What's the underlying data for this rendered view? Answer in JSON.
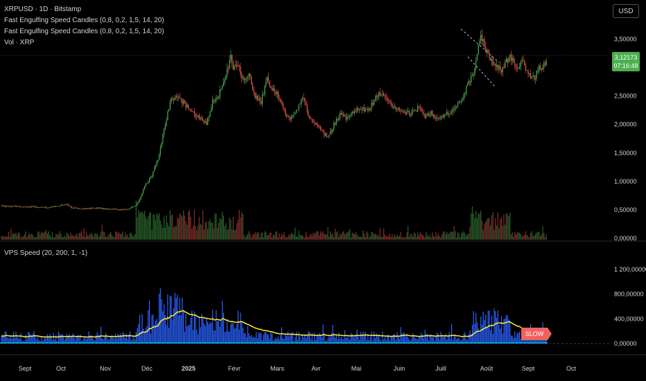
{
  "header": {
    "symbol_line": "XRPUSD · 1D · Bitstamp",
    "indicator_1": "Fast Engulfing Speed Candles (0,8, 0,2, 1,5, 14, 20)",
    "indicator_2": "Fast Engulfing Speed Candles (0,8, 0,2, 1,5, 14, 20)",
    "volume_label": "Vol · XRP",
    "sub_pane_label": "VPS Speed (20, 200, 1, -1)"
  },
  "currency_button": "USD",
  "last_price": {
    "value": "3,12173",
    "countdown": "07:16:48"
  },
  "speed_badge": "SLOW",
  "colors": {
    "up": "#4caf50",
    "down": "#ef5350",
    "vps_bar": "#2962ff",
    "vps_line": "#ffeb3b",
    "baseline": "#00bcd4",
    "slow_badge": "#f06260"
  },
  "chart_data": [
    {
      "type": "candlestick",
      "title": "XRPUSD · 1D · Bitstamp",
      "y_ticks": [
        "3,50000",
        "2,50000",
        "2,00000",
        "1,50000",
        "1,00000",
        "0,50000",
        "0,00000"
      ],
      "ylim": [
        0,
        3.7
      ],
      "x_ticks": [
        "Sept",
        "Oct",
        "Nov",
        "Déc",
        "2025",
        "Févr",
        "Mars",
        "Avr",
        "Mai",
        "Juin",
        "Juill",
        "Août",
        "Sept",
        "Oct"
      ],
      "price_path": [
        [
          0,
          0.57
        ],
        [
          20,
          0.56
        ],
        [
          40,
          0.54
        ],
        [
          55,
          0.6
        ],
        [
          60,
          0.53
        ],
        [
          70,
          0.52
        ],
        [
          80,
          0.53
        ],
        [
          95,
          0.51
        ],
        [
          100,
          0.5
        ],
        [
          105,
          0.51
        ],
        [
          112,
          0.57
        ],
        [
          115,
          0.7
        ],
        [
          120,
          0.95
        ],
        [
          125,
          1.1
        ],
        [
          130,
          1.4
        ],
        [
          135,
          1.9
        ],
        [
          140,
          2.4
        ],
        [
          145,
          2.5
        ],
        [
          150,
          2.4
        ],
        [
          155,
          2.3
        ],
        [
          160,
          2.2
        ],
        [
          165,
          2.1
        ],
        [
          170,
          2.0
        ],
        [
          175,
          2.4
        ],
        [
          180,
          2.5
        ],
        [
          185,
          2.8
        ],
        [
          190,
          3.2
        ],
        [
          192,
          3.0
        ],
        [
          195,
          3.1
        ],
        [
          200,
          2.8
        ],
        [
          205,
          2.9
        ],
        [
          210,
          2.5
        ],
        [
          215,
          2.4
        ],
        [
          220,
          2.8
        ],
        [
          225,
          2.6
        ],
        [
          230,
          2.5
        ],
        [
          235,
          2.2
        ],
        [
          240,
          2.1
        ],
        [
          245,
          2.3
        ],
        [
          250,
          2.5
        ],
        [
          255,
          2.1
        ],
        [
          260,
          2.0
        ],
        [
          265,
          1.9
        ],
        [
          270,
          1.75
        ],
        [
          275,
          2.0
        ],
        [
          280,
          2.2
        ],
        [
          285,
          2.1
        ],
        [
          290,
          2.2
        ],
        [
          295,
          2.3
        ],
        [
          300,
          2.25
        ],
        [
          305,
          2.3
        ],
        [
          310,
          2.5
        ],
        [
          315,
          2.55
        ],
        [
          320,
          2.4
        ],
        [
          325,
          2.3
        ],
        [
          330,
          2.25
        ],
        [
          335,
          2.2
        ],
        [
          340,
          2.2
        ],
        [
          345,
          2.3
        ],
        [
          350,
          2.15
        ],
        [
          355,
          2.2
        ],
        [
          360,
          2.1
        ],
        [
          365,
          2.15
        ],
        [
          370,
          2.2
        ],
        [
          375,
          2.3
        ],
        [
          380,
          2.4
        ],
        [
          385,
          2.7
        ],
        [
          390,
          2.9
        ],
        [
          395,
          3.5
        ],
        [
          398,
          3.55
        ],
        [
          400,
          3.3
        ],
        [
          405,
          3.1
        ],
        [
          410,
          3.0
        ],
        [
          413,
          2.9
        ],
        [
          416,
          3.1
        ],
        [
          420,
          3.2
        ],
        [
          425,
          3.0
        ],
        [
          430,
          3.1
        ],
        [
          435,
          2.9
        ],
        [
          440,
          2.8
        ],
        [
          443,
          2.95
        ],
        [
          446,
          3.02
        ],
        [
          450,
          3.12
        ]
      ],
      "volume_ylim": [
        0,
        1
      ],
      "series": [
        {
          "name": "VPS Speed (20, 200, 1, -1)",
          "type": "bar",
          "y_ticks": [
            "1 200,00000",
            "800,00000",
            "400,00000",
            "0,00000"
          ],
          "ylim": [
            0,
            1300
          ]
        }
      ]
    }
  ]
}
